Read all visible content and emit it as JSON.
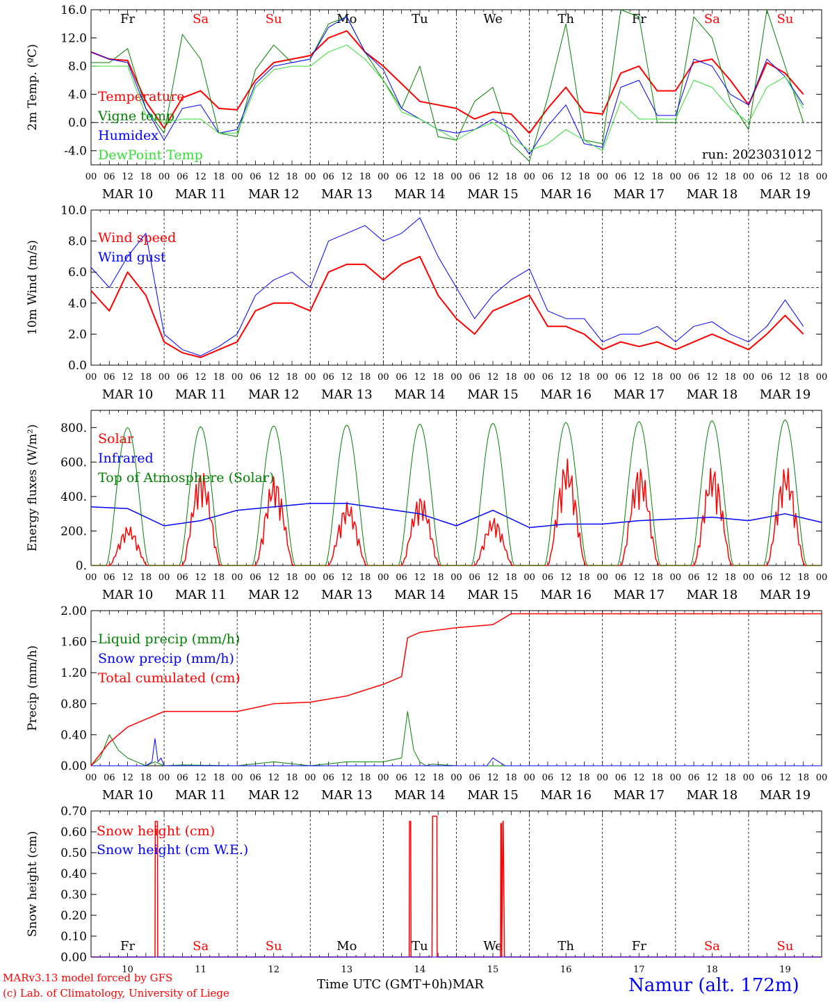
{
  "run": "run: 2023031012",
  "footer": {
    "model": "MARv3.13 model forced by GFS",
    "lab": "(c) Lab. of Climatology, University of Liege",
    "xlabel": "Time UTC (GMT+0h)",
    "month": "MAR",
    "station": "Namur (alt. 172m)"
  },
  "colors": {
    "red": "#ff0000",
    "green": "#008000",
    "blue": "#0000ff",
    "lightgreen": "#33dd33",
    "weekend": "#ff0000",
    "weekday": "#000000"
  },
  "days": [
    "Fr",
    "Sa",
    "Su",
    "Mo",
    "Tu",
    "We",
    "Th",
    "Fr",
    "Sa",
    "Su"
  ],
  "weekend_days": [
    1,
    2,
    8,
    9
  ],
  "date_labels": [
    "MAR 10",
    "MAR 11",
    "MAR 12",
    "MAR 13",
    "MAR 14",
    "MAR 15",
    "MAR 16",
    "MAR 17",
    "MAR 18",
    "MAR 19"
  ],
  "hour_ticks": [
    "00",
    "06",
    "12",
    "18"
  ],
  "final_tick": "00",
  "day_numbers": [
    "10",
    "11",
    "12",
    "13",
    "14",
    "15",
    "16",
    "17",
    "18",
    "19"
  ],
  "chart_data": [
    {
      "type": "line",
      "ylabel": "2m Temp. (ºC)",
      "ylim": [
        -6,
        16
      ],
      "yticks": [
        -4,
        0,
        4,
        8,
        12,
        16
      ],
      "ytick_labels": [
        "-4.0",
        "0.0",
        "4.0",
        "8.0",
        "12.0",
        "16.0"
      ],
      "refline": 0,
      "x_unit": "hours since 2023-03-10 00 UTC",
      "series": [
        {
          "name": "Temperature",
          "color": "#ff0000",
          "width": 2,
          "x": [
            0,
            6,
            12,
            18,
            24,
            30,
            36,
            42,
            48,
            54,
            60,
            66,
            72,
            78,
            84,
            90,
            96,
            102,
            108,
            114,
            120,
            126,
            132,
            138,
            144,
            150,
            156,
            162,
            168,
            174,
            180,
            186,
            192,
            198,
            204,
            210,
            216,
            222,
            228,
            234
          ],
          "y": [
            10,
            9,
            8.8,
            3,
            -0.8,
            3.5,
            4.5,
            2,
            1.8,
            6,
            8.5,
            9,
            9.5,
            12,
            13,
            10,
            8,
            5.5,
            3,
            2.5,
            2,
            0.5,
            1.5,
            1.2,
            -1.5,
            2,
            5,
            1.5,
            1.2,
            7,
            8,
            4.5,
            4.5,
            8.5,
            9,
            6,
            2.5,
            8.5,
            7,
            4
          ]
        },
        {
          "name": "Vigne temp",
          "color": "#008000",
          "width": 1,
          "x": [
            0,
            6,
            12,
            18,
            24,
            30,
            36,
            42,
            48,
            54,
            60,
            66,
            72,
            78,
            84,
            90,
            96,
            102,
            108,
            114,
            120,
            126,
            132,
            138,
            144,
            150,
            156,
            162,
            168,
            174,
            180,
            186,
            192,
            198,
            204,
            210,
            216,
            222,
            228,
            234
          ],
          "y": [
            8.5,
            8.5,
            10.5,
            2,
            -1.5,
            12.5,
            9,
            -1.5,
            -2,
            7.5,
            11,
            8.5,
            9,
            14,
            15,
            10,
            6,
            2,
            8,
            -2,
            -2.5,
            3,
            5,
            -3,
            -5.5,
            3.5,
            14,
            -2.5,
            -3,
            16,
            15,
            0,
            0,
            15,
            12,
            3,
            -1,
            16,
            8,
            0
          ]
        },
        {
          "name": "Humidex",
          "color": "#0000ff",
          "width": 1,
          "x": [
            0,
            6,
            12,
            18,
            24,
            30,
            36,
            42,
            48,
            54,
            60,
            66,
            72,
            78,
            84,
            90,
            96,
            102,
            108,
            114,
            120,
            126,
            132,
            138,
            144,
            150,
            156,
            162,
            168,
            174,
            180,
            186,
            192,
            198,
            204,
            210,
            216,
            222,
            228,
            234
          ],
          "y": [
            10,
            9,
            8.5,
            2,
            -2.5,
            2,
            2.5,
            -1.5,
            -1,
            5.5,
            8,
            8.5,
            9,
            13.5,
            15,
            10,
            7.5,
            2,
            0.5,
            -1,
            -1.5,
            -1,
            0.5,
            -1,
            -4.5,
            -0.5,
            2.5,
            -3,
            -3.5,
            5,
            6,
            1,
            1,
            9,
            8,
            4,
            2.5,
            9,
            6.5,
            2.5
          ]
        },
        {
          "name": "DewPoint Temp",
          "color": "#33dd33",
          "width": 1,
          "x": [
            0,
            6,
            12,
            18,
            24,
            30,
            36,
            42,
            48,
            54,
            60,
            66,
            72,
            78,
            84,
            90,
            96,
            102,
            108,
            114,
            120,
            126,
            132,
            138,
            144,
            150,
            156,
            162,
            168,
            174,
            180,
            186,
            192,
            198,
            204,
            210,
            216,
            222,
            228,
            234
          ],
          "y": [
            8,
            8,
            8,
            1,
            0,
            0.5,
            0.5,
            -1.5,
            -1.5,
            5,
            7.5,
            8,
            8,
            10,
            11,
            9,
            6,
            1.5,
            0.5,
            -1,
            -2.5,
            -1,
            0,
            -2,
            -4,
            -3,
            -1,
            -2.5,
            -4,
            3,
            0.5,
            0.5,
            0.5,
            6,
            5,
            2,
            0,
            5,
            6.5,
            2
          ]
        }
      ]
    },
    {
      "type": "line",
      "ylabel": "10m Wind (m/s)",
      "ylim": [
        0,
        10
      ],
      "yticks": [
        0,
        2,
        4,
        6,
        8,
        10
      ],
      "ytick_labels": [
        "0.0",
        "2.0",
        "4.0",
        "6.0",
        "8.0",
        "10.0"
      ],
      "refline": 5,
      "x_unit": "hours since 2023-03-10 00 UTC",
      "series": [
        {
          "name": "Wind speed",
          "color": "#ff0000",
          "width": 2,
          "x": [
            0,
            6,
            12,
            18,
            24,
            30,
            36,
            42,
            48,
            54,
            60,
            66,
            72,
            78,
            84,
            90,
            96,
            102,
            108,
            114,
            120,
            126,
            132,
            138,
            144,
            150,
            156,
            162,
            168,
            174,
            180,
            186,
            192,
            198,
            204,
            210,
            216,
            222,
            228,
            234
          ],
          "y": [
            4.8,
            3.5,
            6,
            4.5,
            1.5,
            0.8,
            0.5,
            1,
            1.5,
            3.5,
            4,
            4,
            3.5,
            6,
            6.5,
            6.5,
            5.5,
            6.5,
            7,
            4.5,
            3,
            2,
            3.5,
            4,
            4.5,
            2.5,
            2.5,
            2,
            1,
            1.5,
            1.2,
            1.5,
            1,
            1.5,
            2,
            1.5,
            1,
            2,
            3.2,
            2
          ]
        },
        {
          "name": "Wind gust",
          "color": "#0000ff",
          "width": 1,
          "x": [
            0,
            6,
            12,
            18,
            24,
            30,
            36,
            42,
            48,
            54,
            60,
            66,
            72,
            78,
            84,
            90,
            96,
            102,
            108,
            114,
            120,
            126,
            132,
            138,
            144,
            150,
            156,
            162,
            168,
            174,
            180,
            186,
            192,
            198,
            204,
            210,
            216,
            222,
            228,
            234
          ],
          "y": [
            6.3,
            5,
            7,
            8.5,
            2,
            1,
            0.6,
            1.2,
            2,
            4.5,
            5.5,
            6,
            5,
            8,
            8.5,
            9,
            8,
            8.5,
            9.5,
            7,
            5,
            3,
            4.5,
            5.5,
            6.2,
            3.5,
            3,
            3,
            1.5,
            2,
            2,
            2.5,
            1.5,
            2.5,
            2.8,
            2,
            1.5,
            2.5,
            4.2,
            2.5
          ]
        }
      ]
    },
    {
      "type": "line",
      "ylabel": "Energy fluxes (W/m²)",
      "ylim": [
        0,
        900
      ],
      "yticks": [
        0,
        200,
        400,
        600,
        800
      ],
      "ytick_labels": [
        "0.",
        "200.",
        "400.",
        "600.",
        "800."
      ],
      "x_unit": "hours since 2023-03-10 00 UTC",
      "series": [
        {
          "name": "Solar",
          "color": "#ff0000",
          "width": 1.5,
          "daily_peak": [
            230,
            560,
            520,
            370,
            410,
            280,
            620,
            580,
            580,
            580
          ]
        },
        {
          "name": "Infrared",
          "color": "#0000ff",
          "width": 1.5,
          "x": [
            0,
            12,
            24,
            36,
            48,
            60,
            72,
            84,
            96,
            108,
            120,
            132,
            144,
            156,
            168,
            180,
            192,
            204,
            216,
            228,
            240
          ],
          "y": [
            340,
            330,
            230,
            260,
            320,
            340,
            360,
            360,
            330,
            300,
            230,
            320,
            220,
            240,
            240,
            260,
            270,
            280,
            260,
            300,
            250
          ]
        },
        {
          "name": "Top of Atmosphere (Solar)",
          "color": "#008000",
          "width": 1,
          "daily_peak": [
            800,
            805,
            810,
            815,
            820,
            825,
            830,
            835,
            840,
            845
          ]
        }
      ]
    },
    {
      "type": "line",
      "ylabel": "Precip (mm/h)",
      "ylim": [
        0,
        2
      ],
      "yticks": [
        0,
        0.4,
        0.8,
        1.2,
        1.6,
        2.0
      ],
      "ytick_labels": [
        "0.00",
        "0.40",
        "0.80",
        "1.20",
        "1.60",
        "2.00"
      ],
      "x_unit": "hours since 2023-03-10 00 UTC",
      "series": [
        {
          "name": "Liquid precip (mm/h)",
          "color": "#008000",
          "width": 1,
          "x": [
            0,
            3,
            6,
            9,
            12,
            15,
            18,
            21,
            24,
            30,
            48,
            60,
            72,
            84,
            96,
            102,
            104,
            106,
            108,
            110,
            112,
            120,
            144,
            168,
            192,
            216,
            240
          ],
          "y": [
            0,
            0.1,
            0.4,
            0.2,
            0.1,
            0.05,
            0,
            0.05,
            0,
            0.01,
            0,
            0.05,
            0,
            0.05,
            0.05,
            0.1,
            0.7,
            0.2,
            0.05,
            0,
            0.02,
            0,
            0,
            0,
            0,
            0,
            0
          ]
        },
        {
          "name": "Snow precip (mm/h)",
          "color": "#0000ff",
          "width": 1,
          "x": [
            0,
            18,
            20,
            21,
            22,
            23,
            24,
            120,
            130,
            132,
            134,
            136,
            140,
            240
          ],
          "y": [
            0,
            0,
            0.05,
            0.35,
            0.05,
            0.1,
            0,
            0,
            0,
            0.1,
            0.05,
            0,
            0,
            0
          ]
        },
        {
          "name": "Total cumulated (cm)",
          "color": "#ff0000",
          "width": 1.5,
          "x": [
            0,
            6,
            12,
            18,
            24,
            48,
            60,
            72,
            84,
            96,
            102,
            104,
            108,
            120,
            132,
            138,
            144,
            240
          ],
          "y": [
            0,
            0.3,
            0.5,
            0.6,
            0.7,
            0.7,
            0.8,
            0.82,
            0.9,
            1.05,
            1.15,
            1.65,
            1.72,
            1.78,
            1.82,
            1.96,
            1.96,
            1.96
          ]
        }
      ]
    },
    {
      "type": "line",
      "ylabel": "Snow height (cm)",
      "ylim": [
        0,
        0.7
      ],
      "yticks": [
        0,
        0.1,
        0.2,
        0.3,
        0.4,
        0.5,
        0.6,
        0.7
      ],
      "ytick_labels": [
        "0.00",
        "0.10",
        "0.20",
        "0.30",
        "0.40",
        "0.50",
        "0.60",
        "0.70"
      ],
      "x_unit": "hours since 2023-03-10 00 UTC",
      "series": [
        {
          "name": "Snow height (cm)",
          "color": "#ff0000",
          "width": 1.5,
          "x": [
            0,
            21,
            21.1,
            21.8,
            21.9,
            104.5,
            104.6,
            105,
            105.1,
            112,
            112.2,
            113.6,
            113.7,
            134.5,
            134.6,
            134.8,
            134.9,
            135.3,
            135.4,
            135.8,
            135.9,
            240
          ],
          "y": [
            0,
            0,
            0.65,
            0.65,
            0,
            0,
            0.65,
            0.65,
            0,
            0,
            0.675,
            0.675,
            0,
            0,
            0.64,
            0.64,
            0,
            0.65,
            0.65,
            0,
            0,
            0
          ]
        },
        {
          "name": "Snow height (cm W.E.)",
          "color": "#0000ff",
          "width": 1,
          "x": [
            0,
            240
          ],
          "y": [
            0,
            0
          ]
        }
      ]
    }
  ]
}
